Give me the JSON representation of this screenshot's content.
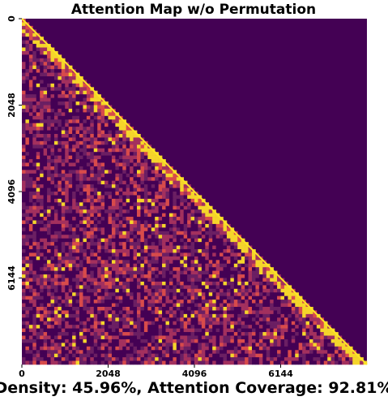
{
  "chart_data": {
    "type": "heatmap",
    "title": "Attention Map w/o Permutation",
    "caption": "Density: 45.96%, Attention Coverage: 92.81%",
    "matrix_size": 8192,
    "mask": "causal-lower-triangular",
    "x_ticks": [
      0,
      2048,
      4096,
      6144
    ],
    "y_ticks": [
      0,
      2048,
      4096,
      6144
    ],
    "x_tick_labels": [
      "0",
      "2048",
      "4096",
      "6144"
    ],
    "y_tick_labels": [
      "0",
      "2048",
      "4096",
      "6144"
    ],
    "xlabel": "",
    "ylabel": "",
    "colormap": [
      "#440154",
      "#6b1f63",
      "#a3305e",
      "#d84b4b",
      "#f5d52b",
      "#fde725"
    ],
    "background_color": "#440154",
    "diagonal_color": "#fde725",
    "density_percent": 45.96,
    "attention_coverage_percent": 92.81,
    "grid": false,
    "legend": "none"
  }
}
